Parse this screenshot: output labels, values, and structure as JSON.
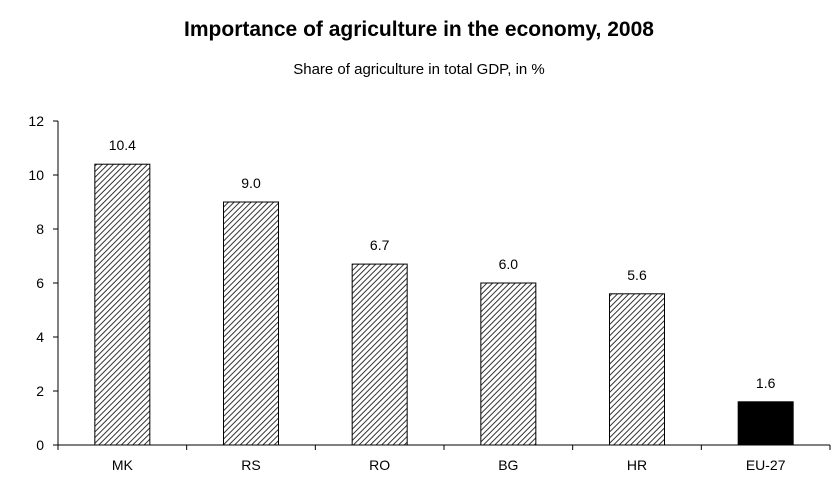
{
  "chart_data": {
    "type": "bar",
    "title": "Importance of agriculture in the economy, 2008",
    "subtitle": "Share of agriculture in total GDP, in %",
    "categories": [
      "MK",
      "RS",
      "RO",
      "BG",
      "HR",
      "EU-27"
    ],
    "values": [
      10.4,
      9.0,
      6.7,
      6.0,
      5.6,
      1.6
    ],
    "value_labels": [
      "10.4",
      "9.0",
      "6.7",
      "6.0",
      "5.6",
      "1.6"
    ],
    "ylim": [
      0,
      12
    ],
    "yticks": [
      0,
      2,
      4,
      6,
      8,
      10,
      12
    ],
    "grid": false,
    "legend": "none",
    "bar_styles": [
      "hatched",
      "hatched",
      "hatched",
      "hatched",
      "hatched",
      "solid"
    ],
    "colors": {
      "hatch": "#000000",
      "solid": "#000000",
      "axis": "#000000"
    }
  }
}
